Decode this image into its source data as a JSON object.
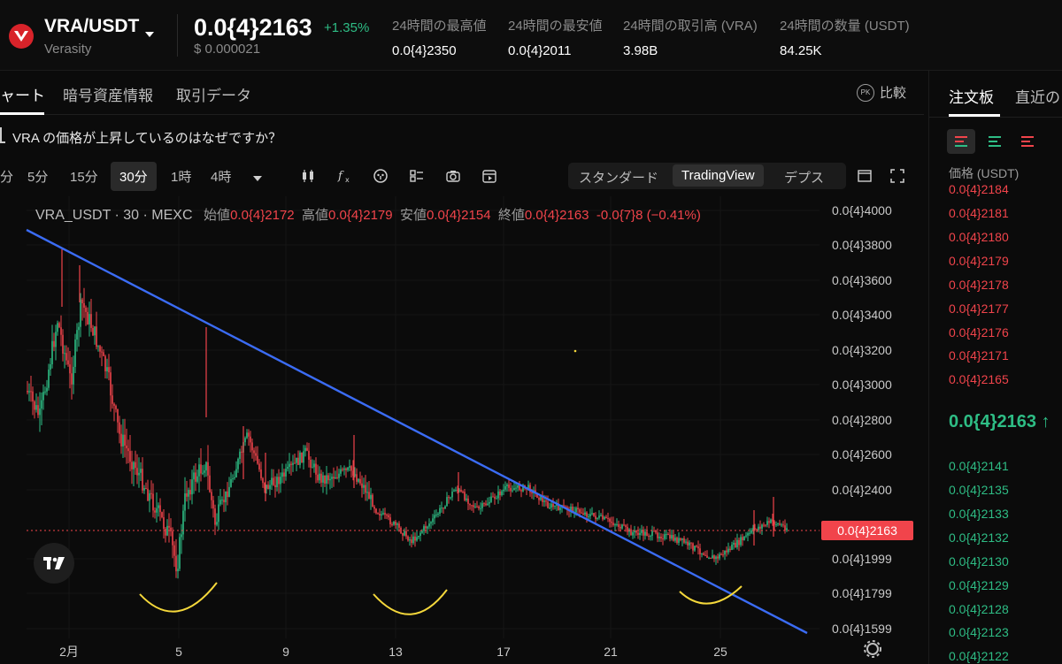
{
  "header": {
    "pair": "VRA/USDT",
    "pair_name": "Verasity",
    "price": "0.0{4}2163",
    "change": "+1.35%",
    "price_usd": "$ 0.000021",
    "stats": [
      {
        "label": "24時間の最高値",
        "value": "0.0{4}2350"
      },
      {
        "label": "24時間の最安値",
        "value": "0.0{4}2011"
      },
      {
        "label": "24時間の取引高 (VRA)",
        "value": "3.98B"
      },
      {
        "label": "24時間の数量 (USDT)",
        "value": "84.25K"
      }
    ]
  },
  "tabs": [
    "ャート",
    "暗号資産情報",
    "取引データ"
  ],
  "compare_label": "比較",
  "compare_badge": "PK",
  "question": "VRA の価格が上昇しているのはなぜですか？",
  "toolbar": {
    "timeframes": [
      "分",
      "5分",
      "15分",
      "30分",
      "1時",
      "4時"
    ],
    "active_timeframe": "30分",
    "views": [
      "スタンダード",
      "TradingView",
      "デプス"
    ],
    "active_view": "TradingView",
    "icons": [
      "chevron-down-icon",
      "candlestick-icon",
      "indicator-icon",
      "template-icon",
      "layout-icon",
      "camera-icon",
      "replay-icon",
      "window-icon",
      "fullscreen-icon"
    ]
  },
  "chart": {
    "symbol": "VRA_USDT · 30 · MEXC",
    "open_label": "始値",
    "open": "0.0{4}2172",
    "high_label": "高値",
    "high": "0.0{4}2179",
    "low_label": "安値",
    "low": "0.0{4}2154",
    "close_label": "終値",
    "close": "0.0{4}2163",
    "change": "-0.0{7}8 (−0.41%)",
    "y_ticks": [
      "0.0{4}4000",
      "0.0{4}3800",
      "0.0{4}3600",
      "0.0{4}3400",
      "0.0{4}3200",
      "0.0{4}3000",
      "0.0{4}2800",
      "0.0{4}2600",
      "0.0{4}2400",
      "0.0{4}1999",
      "0.0{4}1799",
      "0.0{4}1599"
    ],
    "x_ticks": [
      "2月",
      "5",
      "9",
      "13",
      "17",
      "21",
      "25"
    ],
    "last_price_tag": "0.0{4}2163",
    "colors": {
      "up": "#2ebd85",
      "down": "#f1444b",
      "trendline": "#3b6cf5",
      "arc": "#f5d83b"
    }
  },
  "orderbook": {
    "tabs": [
      "注文板",
      "直近の"
    ],
    "price_header": "価格 (USDT)",
    "asks": [
      "0.0{4}2184",
      "0.0{4}2181",
      "0.0{4}2180",
      "0.0{4}2179",
      "0.0{4}2178",
      "0.0{4}2177",
      "0.0{4}2176",
      "0.0{4}2171",
      "0.0{4}2165"
    ],
    "mid_price": "0.0{4}2163 ↑",
    "bids": [
      "0.0{4}2141",
      "0.0{4}2135",
      "0.0{4}2133",
      "0.0{4}2132",
      "0.0{4}2130",
      "0.0{4}2129",
      "0.0{4}2128",
      "0.0{4}2123",
      "0.0{4}2122"
    ]
  }
}
